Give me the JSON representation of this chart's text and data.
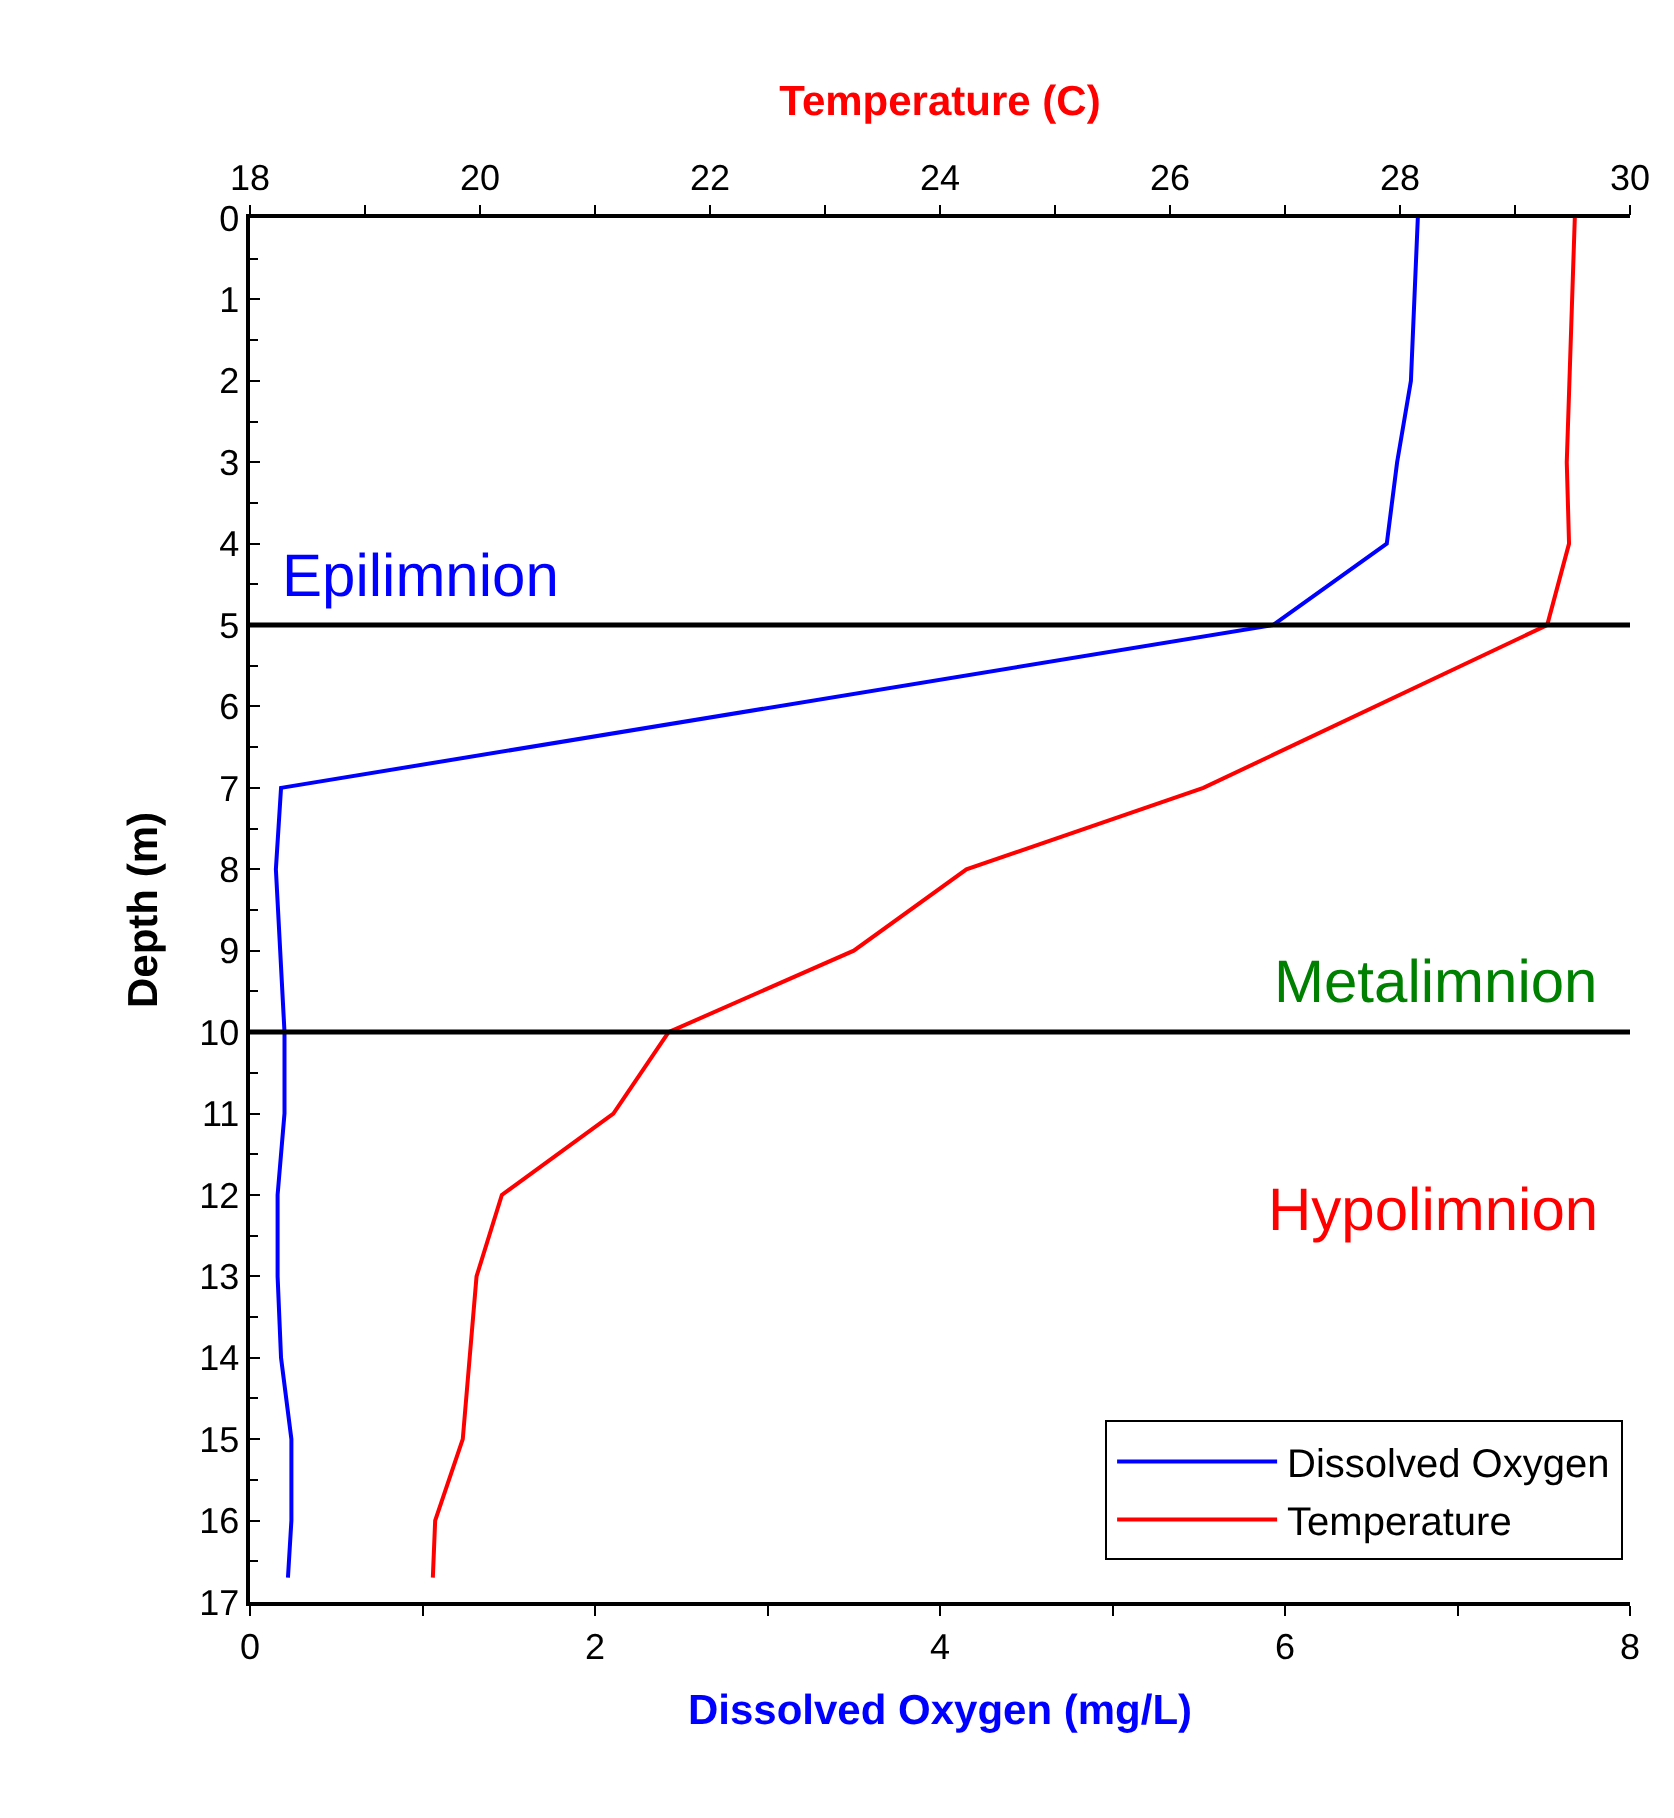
{
  "chart_data": {
    "type": "line",
    "xlabel": "Dissolved Oxygen (mg/L)",
    "x2label": "Temperature (C)",
    "ylabel": "Depth (m)",
    "xlim": [
      0,
      8
    ],
    "xticks": [
      0,
      {
        "value": 1,
        "label": null
      },
      2,
      {
        "value": 3,
        "label": null
      },
      4,
      {
        "value": 5,
        "label": null
      },
      6,
      {
        "value": 7,
        "label": null
      },
      8
    ],
    "x2lim": [
      18,
      30
    ],
    "x2ticks": [
      18,
      {
        "value": 19,
        "label": null
      },
      20,
      {
        "value": 21,
        "label": null
      },
      22,
      {
        "value": 23,
        "label": null
      },
      24,
      {
        "value": 25,
        "label": null
      },
      26,
      {
        "value": 27,
        "label": null
      },
      28,
      {
        "value": 29,
        "label": null
      },
      30
    ],
    "ylim": [
      17,
      0
    ],
    "yticks": [
      0,
      1,
      2,
      3,
      4,
      5,
      6,
      7,
      8,
      9,
      10,
      11,
      12,
      13,
      14,
      15,
      16,
      17
    ],
    "series": [
      {
        "name": "Dissolved Oxygen",
        "color": "#0000ff",
        "x": [
          6.77,
          6.73,
          6.65,
          6.59,
          5.93,
          0.18,
          0.15,
          0.2,
          0.2,
          0.16,
          0.16,
          0.18,
          0.24,
          0.24,
          0.22
        ],
        "values": [
          0,
          2,
          3,
          4,
          5,
          7,
          8,
          10,
          11,
          12,
          13,
          14,
          15,
          16,
          16.7
        ]
      },
      {
        "name": "Temperature",
        "color": "#ff0000",
        "axis": "x2",
        "x": [
          29.52,
          29.45,
          29.47,
          29.28,
          26.29,
          24.23,
          23.25,
          21.64,
          21.16,
          20.19,
          19.97,
          19.85,
          19.61,
          19.59
        ],
        "values": [
          0,
          3,
          4,
          5,
          7,
          8,
          9,
          10,
          11,
          12,
          13,
          15,
          16,
          16.7
        ]
      }
    ],
    "ref_lines": [
      {
        "axis": "y",
        "value": 5,
        "color": "#000000"
      },
      {
        "axis": "y",
        "value": 10,
        "color": "#000000"
      }
    ],
    "annotations": [
      "Epilimnion",
      "Metalimnion",
      "Hypolimnion"
    ],
    "legend": "bottom right",
    "marker": "none",
    "line_style": "solid"
  }
}
